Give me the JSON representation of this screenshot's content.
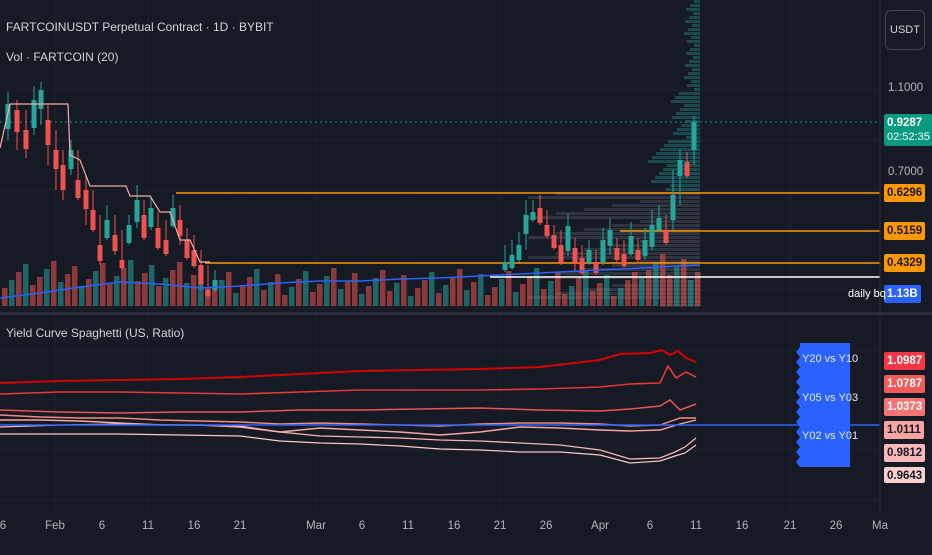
{
  "header": {
    "symbol_title": "FARTCOINUSDT Perpetual Contract · 1D · BYBIT",
    "volume_label": "Vol · FARTCOIN (20)",
    "currency_button": "USDT"
  },
  "price_axis": {
    "ticks": [
      "1.1000",
      "0.7000"
    ],
    "last_price": "0.9287",
    "countdown": "02:52:35",
    "level_tags": [
      "0.6296",
      "0.5159",
      "0.4329"
    ],
    "volume_tag": "1.13B",
    "daily_label": "daily bq"
  },
  "indicator": {
    "title": "Yield Curve Spaghetti (US, Ratio)",
    "series_labels": [
      "Y20 vs Y10",
      "Y05 vs Y03",
      "Y02 vs Y01"
    ],
    "value_tags": [
      "1.0987",
      "1.0787",
      "1.0373",
      "1.0111",
      "0.9812",
      "0.9643"
    ]
  },
  "time_axis": {
    "labels": [
      "6",
      "Feb",
      "6",
      "11",
      "16",
      "21",
      "Mar",
      "6",
      "11",
      "16",
      "21",
      "26",
      "Apr",
      "6",
      "11",
      "16",
      "21",
      "26",
      "Ma"
    ]
  },
  "colors": {
    "background": "#161a25",
    "up": "#26a69a",
    "down": "#ef5350",
    "level_line": "#ff9800",
    "last_price": "#089981",
    "volume_tag": "#2962ff",
    "indicator_tag_top": "#f23645",
    "label_bg": "#2962ff"
  }
}
